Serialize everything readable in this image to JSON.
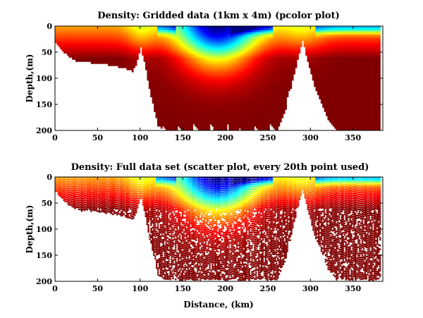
{
  "chart_data": [
    {
      "type": "heatmap",
      "style": "pcolor",
      "title": "Density: Gridded data (1km x 4m) (pcolor plot)",
      "xlabel": "",
      "ylabel": "Depth,(m)",
      "xlim": [
        0,
        385
      ],
      "ylim": [
        0,
        200
      ],
      "y_reversed": true,
      "xticks": [
        0,
        50,
        100,
        150,
        200,
        250,
        300,
        350
      ],
      "yticks": [
        0,
        50,
        100,
        150,
        200
      ],
      "colormap": "jet",
      "bottom_depth_profile": {
        "distance_km": [
          0,
          5,
          10,
          15,
          20,
          30,
          40,
          50,
          60,
          70,
          80,
          90,
          95,
          100,
          105,
          110,
          120,
          130,
          140,
          150,
          160,
          170,
          180,
          190,
          200,
          210,
          220,
          230,
          240,
          250,
          260,
          270,
          280,
          290,
          295,
          300,
          305,
          310,
          320,
          330,
          340,
          350,
          360,
          370,
          380
        ],
        "depth_m": [
          30,
          40,
          50,
          55,
          62,
          68,
          68,
          70,
          72,
          75,
          78,
          85,
          70,
          40,
          75,
          120,
          190,
          200,
          200,
          200,
          200,
          200,
          200,
          200,
          200,
          200,
          200,
          200,
          200,
          200,
          200,
          160,
          90,
          25,
          60,
          90,
          120,
          140,
          180,
          200,
          200,
          200,
          200,
          200,
          200
        ]
      },
      "low_density_core": {
        "x_range": [
          165,
          215
        ],
        "depth_m": [
          0,
          20
        ]
      },
      "surface_blue_patches": [
        {
          "x_range": [
            120,
            140
          ]
        },
        {
          "x_range": [
            210,
            250
          ]
        },
        {
          "x_range": [
            310,
            380
          ]
        }
      ]
    },
    {
      "type": "scatter",
      "title": "Density: Full data set (scatter plot, every 20th point used)",
      "xlabel": "Distance, (km)",
      "ylabel": "Depth,(m)",
      "xlim": [
        0,
        385
      ],
      "ylim": [
        0,
        200
      ],
      "y_reversed": true,
      "xticks": [
        0,
        50,
        100,
        150,
        200,
        250,
        300,
        350
      ],
      "yticks": [
        0,
        50,
        100,
        150,
        200
      ],
      "colormap": "jet",
      "sampling": "every 20th point"
    }
  ]
}
